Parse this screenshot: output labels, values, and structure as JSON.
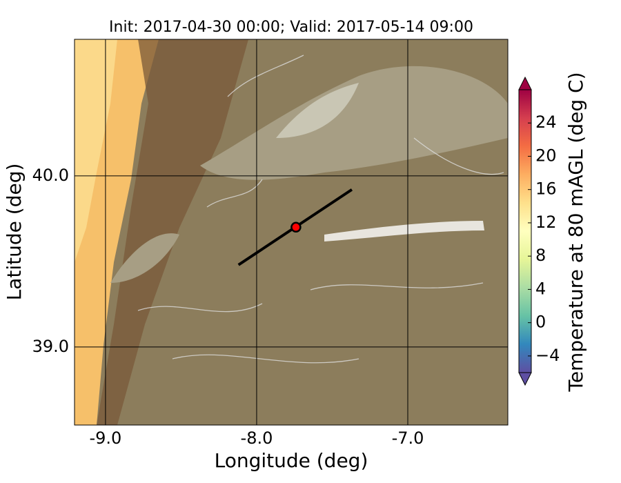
{
  "chart_data": {
    "type": "map",
    "title": "Init: 2017-04-30 00:00; Valid: 2017-05-14 09:00",
    "xlabel": "Longitude (deg)",
    "ylabel": "Latitude (deg)",
    "xlim": [
      -9.205,
      -6.338
    ],
    "ylim": [
      38.544,
      40.798
    ],
    "xticks": [
      {
        "value": -9,
        "label": "-9.0"
      },
      {
        "value": -8,
        "label": "-8.0"
      },
      {
        "value": -7,
        "label": "-7.0"
      }
    ],
    "yticks": [
      {
        "value": 39,
        "label": "39.0"
      },
      {
        "value": 40,
        "label": "40.0"
      }
    ],
    "grid": true,
    "colorbar": {
      "label": "Temperature at 80 mAGL (deg C)",
      "lim": [
        -6,
        28
      ],
      "ticks": [
        {
          "value": -4,
          "label": "−4"
        },
        0,
        4,
        8,
        12,
        16,
        20,
        24
      ],
      "colors": [
        "#5e4fa2",
        "#3288bd",
        "#66c2a5",
        "#abdda4",
        "#e6f598",
        "#ffffbf",
        "#fee08b",
        "#fdae61",
        "#f46d43",
        "#d53e4f",
        "#9e0142"
      ]
    },
    "cross_section": {
      "lon": [
        -8.12,
        -7.37
      ],
      "lat": [
        39.48,
        39.92
      ],
      "color": "#000000"
    },
    "point": {
      "lon": -7.74,
      "lat": 39.7,
      "color": "#ff0000"
    }
  }
}
